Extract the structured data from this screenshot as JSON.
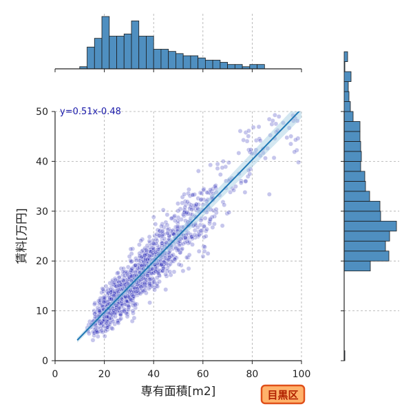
{
  "chart_data": [
    {
      "type": "scatter",
      "xlabel": "専有面積[m2]",
      "ylabel": "賃料[万円]",
      "xlim": [
        0,
        100
      ],
      "ylim": [
        0,
        50
      ],
      "xticks": [
        "0",
        "20",
        "40",
        "60",
        "80",
        "100"
      ],
      "yticks": [
        "0",
        "10",
        "20",
        "30",
        "40",
        "50"
      ],
      "grid": true,
      "regression": {
        "equation": "y=0.51x-0.48",
        "slope": 0.51,
        "intercept": -0.48,
        "x_range": [
          9,
          100
        ]
      },
      "point_color": "#3333bb",
      "line_color": "#1f77b4",
      "density_clusters": [
        {
          "x": 20,
          "y": 10,
          "count": 260
        },
        {
          "x": 26,
          "y": 13,
          "count": 320
        },
        {
          "x": 33,
          "y": 17,
          "count": 300
        },
        {
          "x": 40,
          "y": 20,
          "count": 260
        },
        {
          "x": 48,
          "y": 25,
          "count": 170
        },
        {
          "x": 58,
          "y": 30,
          "count": 110
        },
        {
          "x": 70,
          "y": 35,
          "count": 60
        },
        {
          "x": 85,
          "y": 38,
          "count": 35
        },
        {
          "x": 96,
          "y": 42,
          "count": 20
        }
      ]
    },
    {
      "type": "bar",
      "orientation": "vertical",
      "description": "marginal histogram of 専有面積",
      "bin_start": 10,
      "bin_width": 3,
      "values": [
        1,
        10,
        14,
        24,
        15,
        15,
        16,
        22,
        15,
        15,
        9,
        9,
        8,
        7,
        6,
        6,
        5,
        4,
        4,
        3,
        2,
        2,
        1,
        2,
        2
      ],
      "color": "#4f8fc0"
    },
    {
      "type": "bar",
      "orientation": "horizontal",
      "description": "marginal histogram of 賃料",
      "bin_start": 0,
      "bin_width": 2,
      "values": [
        1,
        0,
        0,
        0,
        0,
        0,
        0,
        0,
        0,
        38,
        65,
        60,
        66,
        76,
        53,
        52,
        37,
        31,
        30,
        24,
        25,
        24,
        23,
        23,
        13,
        9,
        7,
        6,
        10,
        1,
        5
      ],
      "color": "#4f8fc0"
    }
  ],
  "badge": {
    "label": "目黒区",
    "fill": "#ffb26b",
    "border": "#e0501a"
  }
}
